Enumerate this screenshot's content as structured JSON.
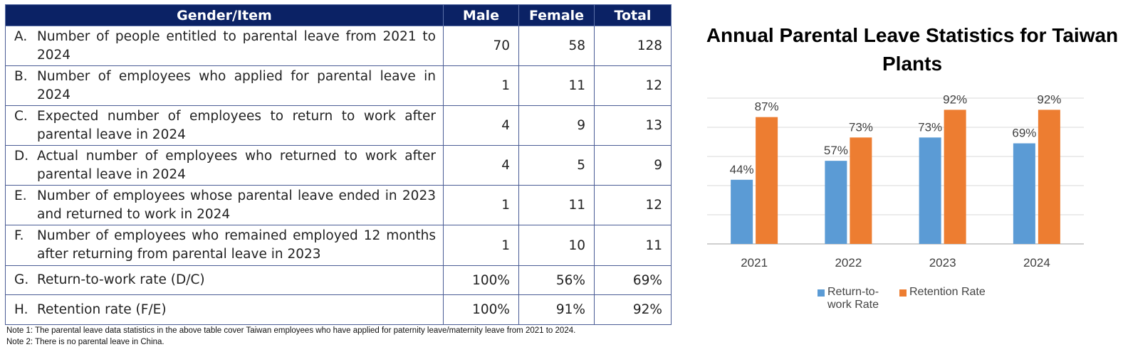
{
  "table": {
    "headers": [
      "Gender/Item",
      "Male",
      "Female",
      "Total"
    ],
    "rows": [
      {
        "letter": "A.",
        "text": "Number of people entitled to parental leave from 2021 to 2024",
        "male": "70",
        "female": "58",
        "total": "128"
      },
      {
        "letter": "B.",
        "text": "Number of employees who applied for parental leave in 2024",
        "male": "1",
        "female": "11",
        "total": "12"
      },
      {
        "letter": "C.",
        "text": "Expected number of employees to return to work after parental leave in 2024",
        "male": "4",
        "female": "9",
        "total": "13"
      },
      {
        "letter": "D.",
        "text": "Actual number of employees who returned to work after parental leave in 2024",
        "male": "4",
        "female": "5",
        "total": "9"
      },
      {
        "letter": "E.",
        "text": "Number of employees whose parental leave ended in 2023 and returned to work in 2024",
        "male": "1",
        "female": "11",
        "total": "12"
      },
      {
        "letter": "F.",
        "text": "Number of employees who remained employed 12 months after returning from parental leave in 2023",
        "male": "1",
        "female": "10",
        "total": "11"
      },
      {
        "letter": "G.",
        "text": "Return-to-work rate (D/C)",
        "male": "100%",
        "female": "56%",
        "total": "69%"
      },
      {
        "letter": "H.",
        "text": "Retention rate (F/E)",
        "male": "100%",
        "female": "91%",
        "total": "92%"
      }
    ]
  },
  "notes": [
    "Note 1: The parental leave data statistics in the above table cover Taiwan employees who have applied for paternity leave/maternity leave from 2021 to 2024.",
    "Note 2: There is no parental leave in China."
  ],
  "chart_data": {
    "type": "bar",
    "title": "Annual Parental Leave Statistics for Taiwan Plants",
    "categories": [
      "2021",
      "2022",
      "2023",
      "2024"
    ],
    "series": [
      {
        "name": "Return-to-work Rate",
        "values": [
          44,
          57,
          73,
          69
        ],
        "labels": [
          "44%",
          "57%",
          "73%",
          "69%"
        ],
        "color": "#5b9bd5"
      },
      {
        "name": "Retention Rate",
        "values": [
          87,
          73,
          92,
          92
        ],
        "labels": [
          "87%",
          "73%",
          "92%",
          "92%"
        ],
        "color": "#ed7d31"
      }
    ],
    "ylim": [
      0,
      100
    ],
    "grid": true,
    "legend": "bottom",
    "xlabel": "",
    "ylabel": ""
  },
  "legend_labels": {
    "return_line1": "Return-to-",
    "return_line2": "work Rate",
    "retention": "Retention Rate"
  }
}
